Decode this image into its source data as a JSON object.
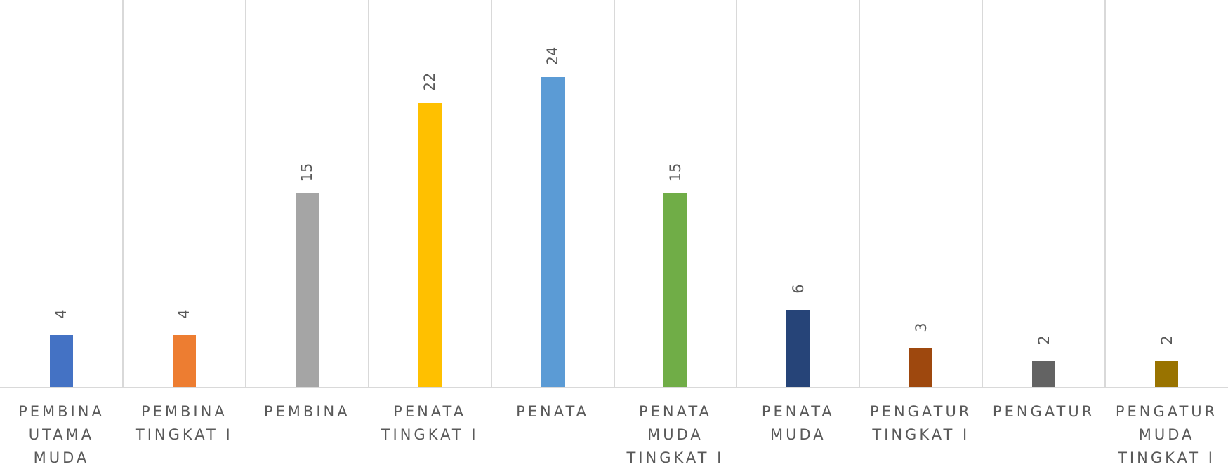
{
  "chart_data": {
    "type": "bar",
    "categories": [
      "PEMBINA\nUTAMA\nMUDA",
      "PEMBINA\nTINGKAT I",
      "PEMBINA",
      "PENATA\nTINGKAT I",
      "PENATA",
      "PENATA\nMUDA\nTINGKAT I",
      "PENATA\nMUDA",
      "PENGATUR\nTINGKAT I",
      "PENGATUR",
      "PENGATUR\nMUDA\nTINGKAT I"
    ],
    "values": [
      4,
      4,
      15,
      22,
      24,
      15,
      6,
      3,
      2,
      2
    ],
    "colors": [
      "#4472c4",
      "#ed7d31",
      "#a5a5a5",
      "#ffc000",
      "#5b9bd5",
      "#70ad47",
      "#264478",
      "#9e480e",
      "#636363",
      "#997300"
    ],
    "ylim": [
      0,
      30
    ]
  }
}
